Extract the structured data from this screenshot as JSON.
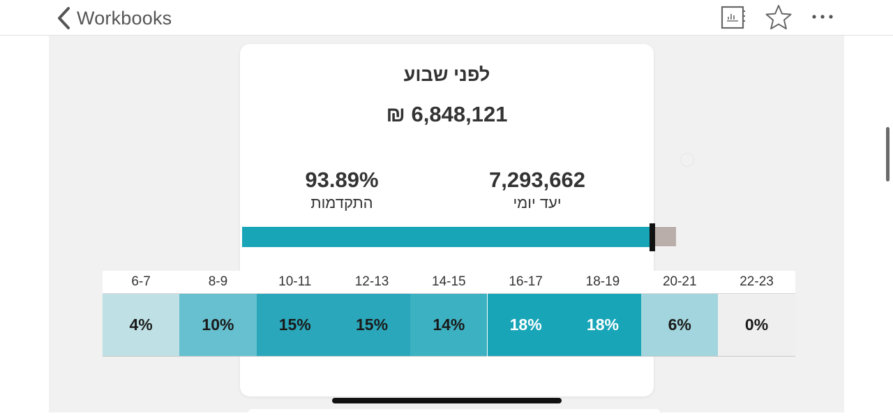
{
  "header": {
    "back_label": "Workbooks",
    "icons": [
      "chevron-left-icon",
      "data-guide-icon",
      "star-icon",
      "more-icon"
    ]
  },
  "card": {
    "title": "לפני שבוע",
    "total": "₪ 6,848,121",
    "progress_value": "93.89%",
    "progress_label": "התקדמות",
    "target_value": "7,293,662",
    "target_label": "יעד יומי",
    "progress_fraction": 0.9389
  },
  "colors": {
    "accent": "#18a5b8",
    "remainder": "#b9aeaa",
    "canvas": "#f1f1f1"
  },
  "heatmap": {
    "hours": [
      "6-7",
      "8-9",
      "10-11",
      "12-13",
      "14-15",
      "16-17",
      "18-19",
      "20-21",
      "22-23"
    ],
    "values": [
      "4%",
      "10%",
      "15%",
      "15%",
      "14%",
      "18%",
      "18%",
      "6%",
      "0%"
    ],
    "shares": [
      4,
      10,
      15,
      15,
      14,
      18,
      18,
      6,
      0
    ],
    "cell_colors": [
      "#bfe1e6",
      "#66c0cf",
      "#2aa7ba",
      "#2aa7ba",
      "#3cb1c2",
      "#18a5b8",
      "#18a5b8",
      "#a2d5dd",
      "#efefef"
    ],
    "text_colors": [
      "#1a1a1a",
      "#1a1a1a",
      "#1a1a1a",
      "#1a1a1a",
      "#1a1a1a",
      "#ffffff",
      "#ffffff",
      "#1a1a1a",
      "#1a1a1a"
    ]
  }
}
